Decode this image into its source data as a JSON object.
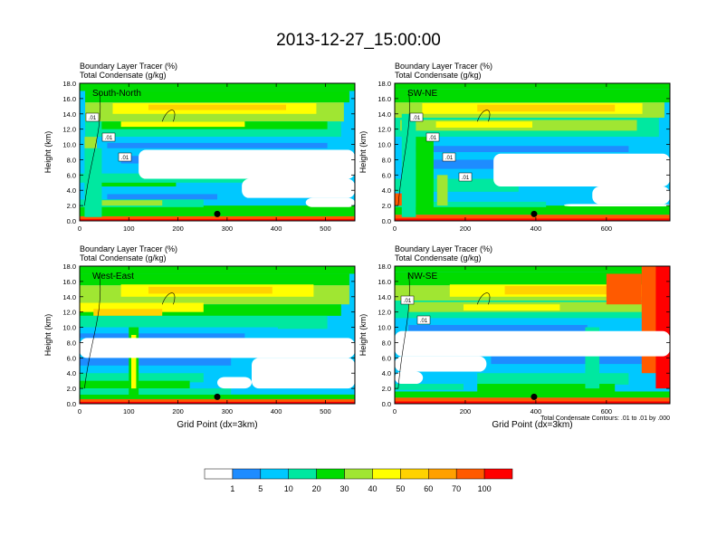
{
  "title": "2013-12-27_15:00:00",
  "panel_label_line1": "Boundary Layer Tracer    (%)",
  "panel_label_line2": "Total Condensate   (g/kg)",
  "contour_note": "Total Condensate Contours: .01 to .01 by .000",
  "colors": {
    "levels": [
      "#ffffff",
      "#1e8cff",
      "#00c8ff",
      "#00e8a0",
      "#00dc00",
      "#a0e632",
      "#ffff00",
      "#ffd200",
      "#ffa000",
      "#ff5a00",
      "#ff0000"
    ]
  },
  "chart_data": [
    {
      "type": "heatmap",
      "panel": "South-North",
      "ylabel": "Height (km)",
      "xlabel": "",
      "xlim": [
        0,
        560
      ],
      "ylim": [
        0,
        18
      ],
      "xticks": [
        "0",
        "100",
        "200",
        "300",
        "400",
        "500"
      ],
      "yticks": [
        "0.0",
        "2.0",
        "4.0",
        "6.0",
        "8.0",
        "10.0",
        "12.0",
        "14.0",
        "16.0",
        "18.0"
      ],
      "marker_x": 280,
      "contour_labels": [
        ".01",
        ".01",
        ".01"
      ],
      "note": ""
    },
    {
      "type": "heatmap",
      "panel": "SW-NE",
      "ylabel": "Height (km)",
      "xlabel": "",
      "xlim": [
        0,
        780
      ],
      "ylim": [
        0,
        18
      ],
      "xticks": [
        "0",
        "200",
        "400",
        "600"
      ],
      "yticks": [
        "0.0",
        "2.0",
        "4.0",
        "6.0",
        "8.0",
        "10.0",
        "12.0",
        "14.0",
        "16.0",
        "18.0"
      ],
      "marker_x": 395,
      "contour_labels": [
        ".01",
        ".01",
        ".01",
        ".01"
      ],
      "note": ""
    },
    {
      "type": "heatmap",
      "panel": "West-East",
      "ylabel": "Height (km)",
      "xlabel": "Grid Point (dx=3km)",
      "xlim": [
        0,
        560
      ],
      "ylim": [
        0,
        18
      ],
      "xticks": [
        "0",
        "100",
        "200",
        "300",
        "400",
        "500"
      ],
      "yticks": [
        "0.0",
        "2.0",
        "4.0",
        "6.0",
        "8.0",
        "10.0",
        "12.0",
        "14.0",
        "16.0",
        "18.0"
      ],
      "marker_x": 280,
      "contour_labels": [],
      "note": ""
    },
    {
      "type": "heatmap",
      "panel": "NW-SE",
      "ylabel": "Height (km)",
      "xlabel": "Grid Point (dx=3km)",
      "xlim": [
        0,
        780
      ],
      "ylim": [
        0,
        18
      ],
      "xticks": [
        "0",
        "200",
        "400",
        "600"
      ],
      "yticks": [
        "0.0",
        "2.0",
        "4.0",
        "6.0",
        "8.0",
        "10.0",
        "12.0",
        "14.0",
        "16.0",
        "18.0"
      ],
      "marker_x": 395,
      "contour_labels": [
        ".01",
        ".01"
      ],
      "note": "Total Condensate Contours: .01 to .01 by .000"
    },
    {
      "type": "colorbar",
      "labels": [
        "1",
        "5",
        "10",
        "20",
        "30",
        "40",
        "50",
        "60",
        "70",
        "100"
      ],
      "colors": [
        "#ffffff",
        "#1e8cff",
        "#00c8ff",
        "#00e8a0",
        "#00dc00",
        "#a0e632",
        "#ffff00",
        "#ffd200",
        "#ffa000",
        "#ff5a00",
        "#ff0000"
      ]
    }
  ]
}
